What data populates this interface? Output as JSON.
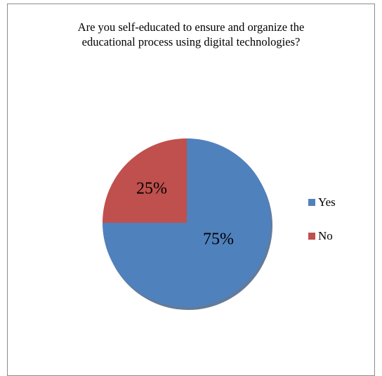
{
  "chart_data": {
    "type": "pie",
    "title_lines": [
      "Are you self-educated to ensure and organize the",
      "educational process using digital technologies?"
    ],
    "slices": [
      {
        "label": "Yes",
        "value": 75,
        "display": "75%",
        "color": "#4f81bd"
      },
      {
        "label": "No",
        "value": 25,
        "display": "25%",
        "color": "#c0504d"
      }
    ],
    "legend": {
      "position": "right",
      "items": [
        {
          "label": "Yes",
          "color": "#4f81bd"
        },
        {
          "label": "No",
          "color": "#c0504d"
        }
      ]
    }
  }
}
